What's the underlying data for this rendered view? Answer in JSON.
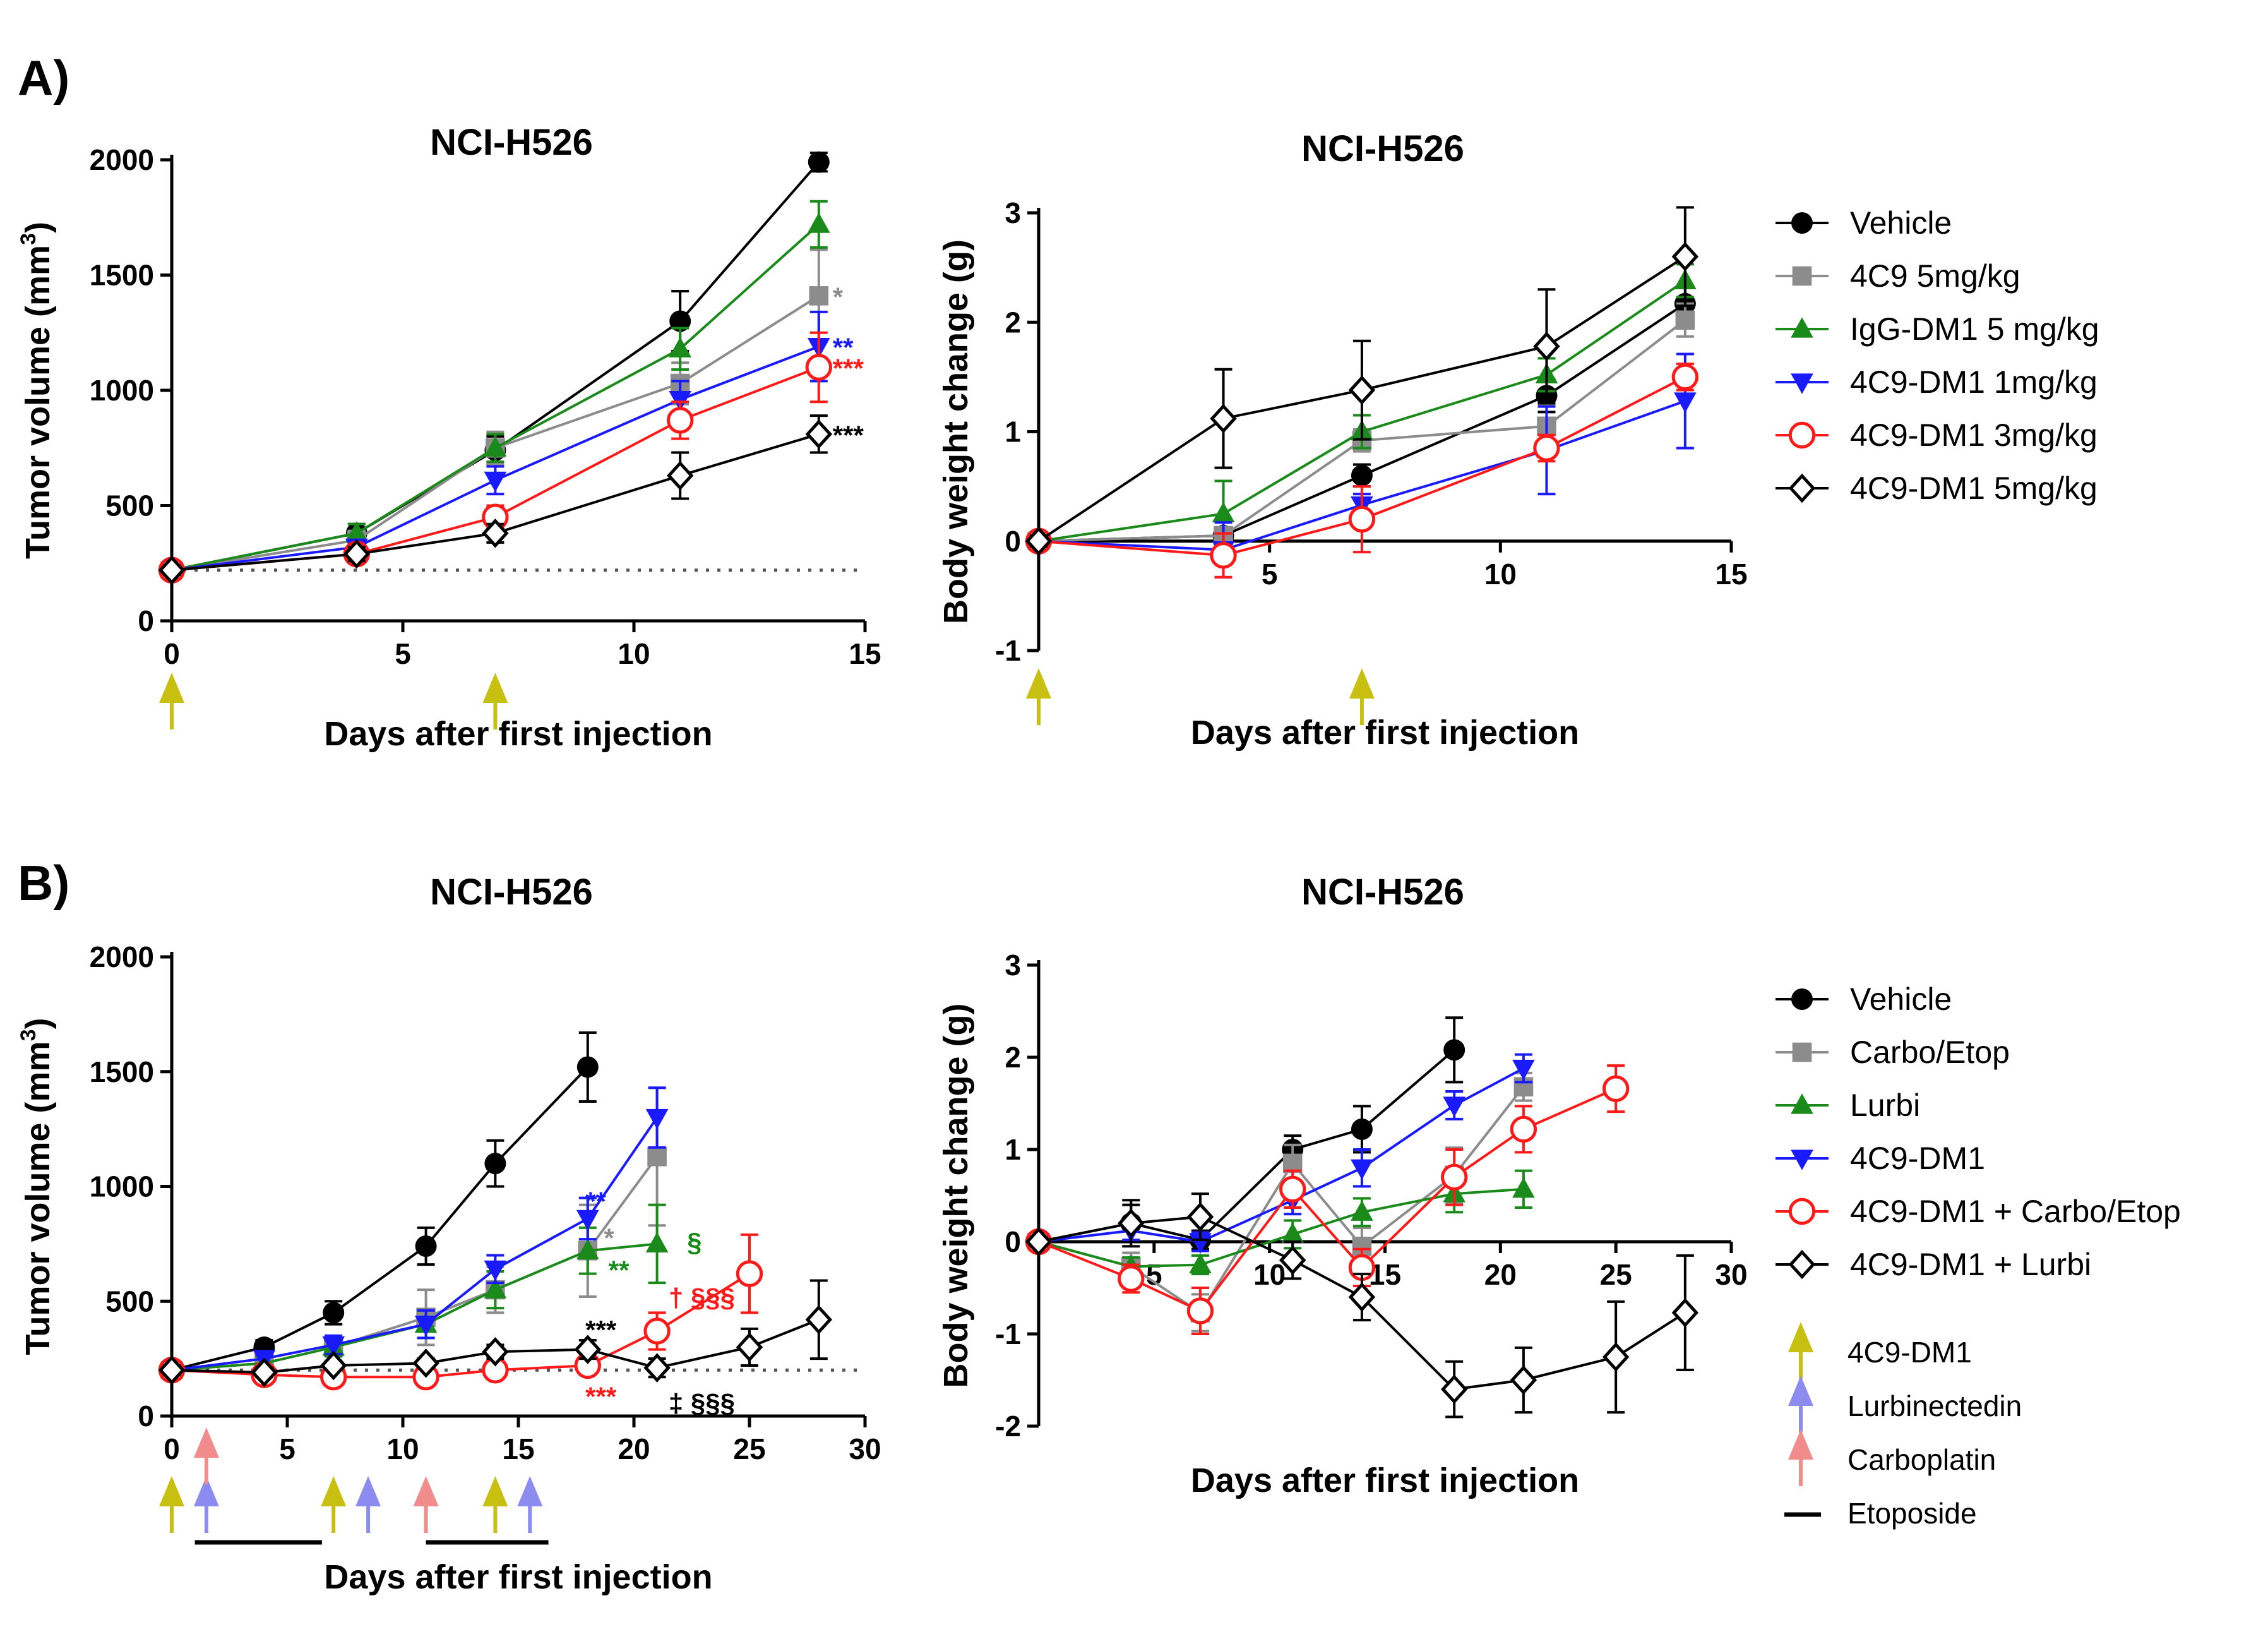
{
  "panel_labels": [
    "A)",
    "B)"
  ],
  "colors": {
    "Vehicle": "#000000",
    "4C9 5mg/kg": "#8c8c8c",
    "IgG-DM1 5 mg/kg": "#1a8a1a",
    "4C9-DM1 1mg/kg": "#1a1aff",
    "4C9-DM1 3mg/kg": "#ff1a1a",
    "4C9-DM1 5mg/kg": "#000000",
    "Carbo/Etop": "#8c8c8c",
    "Lurbi": "#1a8a1a",
    "4C9-DM1": "#1a1aff",
    "4C9-DM1 + Carbo/Etop": "#ff1a1a",
    "4C9-DM1 + Lurbi": "#000000",
    "arrow_4C9": "#c8c010",
    "arrow_lurbi": "#8c8cf0",
    "arrow_carbo": "#f08c8c"
  },
  "legend_A": [
    {
      "label": "Vehicle",
      "marker": "circle-filled"
    },
    {
      "label": "4C9 5mg/kg",
      "marker": "square-filled"
    },
    {
      "label": "IgG-DM1 5 mg/kg",
      "marker": "triangle-up-filled"
    },
    {
      "label": "4C9-DM1 1mg/kg",
      "marker": "triangle-down-filled"
    },
    {
      "label": "4C9-DM1 3mg/kg",
      "marker": "circle-open"
    },
    {
      "label": "4C9-DM1 5mg/kg",
      "marker": "diamond-open"
    }
  ],
  "legend_B": [
    {
      "label": "Vehicle",
      "marker": "circle-filled"
    },
    {
      "label": "Carbo/Etop",
      "marker": "square-filled"
    },
    {
      "label": "Lurbi",
      "marker": "triangle-up-filled"
    },
    {
      "label": "4C9-DM1",
      "marker": "triangle-down-filled"
    },
    {
      "label": "4C9-DM1 + Carbo/Etop",
      "marker": "circle-open"
    },
    {
      "label": "4C9-DM1 + Lurbi",
      "marker": "diamond-open"
    }
  ],
  "treatment_legend": [
    {
      "label": "4C9-DM1",
      "key": "arrow_4C9"
    },
    {
      "label": "Lurbinectedin",
      "key": "arrow_lurbi"
    },
    {
      "label": "Carboplatin",
      "key": "arrow_carbo"
    },
    {
      "label": "Etoposide",
      "key": "bar"
    }
  ],
  "chart_data": [
    {
      "id": "A-tumor",
      "type": "line",
      "title": "NCI-H526",
      "xlabel": "Days after first injection",
      "ylabel_main": "Tumor volume (mm",
      "ylabel_sup": "3",
      "ylabel_close": ")",
      "xlim": [
        0,
        15
      ],
      "ylim": [
        0,
        2000
      ],
      "xticks": [
        0,
        5,
        10,
        15
      ],
      "yticks": [
        0,
        500,
        1000,
        1500,
        2000
      ],
      "baseline": 220,
      "dose_arrows": [
        {
          "day": 0,
          "agent": "arrow_4C9"
        },
        {
          "day": 7,
          "agent": "arrow_4C9"
        }
      ],
      "series": [
        {
          "name": "Vehicle",
          "x": [
            0,
            4,
            7,
            11,
            14
          ],
          "y": [
            220,
            380,
            740,
            1300,
            1990
          ],
          "err": [
            20,
            40,
            60,
            130,
            40
          ]
        },
        {
          "name": "4C9 5mg/kg",
          "x": [
            0,
            4,
            7,
            11,
            14
          ],
          "y": [
            220,
            350,
            750,
            1030,
            1410
          ],
          "err": [
            20,
            40,
            70,
            90,
            200
          ]
        },
        {
          "name": "IgG-DM1 5 mg/kg",
          "x": [
            0,
            4,
            7,
            11,
            14
          ],
          "y": [
            220,
            380,
            750,
            1180,
            1720
          ],
          "err": [
            20,
            40,
            60,
            90,
            100
          ]
        },
        {
          "name": "4C9-DM1 1mg/kg",
          "x": [
            0,
            4,
            7,
            11,
            14
          ],
          "y": [
            220,
            320,
            610,
            960,
            1190
          ],
          "err": [
            20,
            30,
            60,
            80,
            150
          ]
        },
        {
          "name": "4C9-DM1 3mg/kg",
          "x": [
            0,
            4,
            7,
            11,
            14
          ],
          "y": [
            220,
            290,
            450,
            870,
            1100
          ],
          "err": [
            20,
            30,
            50,
            80,
            150
          ]
        },
        {
          "name": "4C9-DM1 5mg/kg",
          "x": [
            0,
            4,
            7,
            11,
            14
          ],
          "y": [
            220,
            290,
            380,
            630,
            810
          ],
          "err": [
            20,
            30,
            40,
            100,
            80
          ]
        }
      ],
      "annotations": [
        {
          "text": "*",
          "x": 14.3,
          "y": 1410,
          "color": "4C9 5mg/kg"
        },
        {
          "text": "**",
          "x": 14.3,
          "y": 1190,
          "color": "4C9-DM1 1mg/kg"
        },
        {
          "text": "***",
          "x": 14.3,
          "y": 1100,
          "color": "4C9-DM1 3mg/kg"
        },
        {
          "text": "***",
          "x": 14.3,
          "y": 810,
          "color": "4C9-DM1 5mg/kg"
        }
      ]
    },
    {
      "id": "A-weight",
      "type": "line",
      "title": "NCI-H526",
      "xlabel": "Days after first injection",
      "ylabel_main": "Body weight change (g)",
      "xlim": [
        0,
        15
      ],
      "ylim": [
        -1,
        3
      ],
      "xticks": [
        5,
        10,
        15
      ],
      "yticks": [
        -1,
        0,
        1,
        2,
        3
      ],
      "dose_arrows": [
        {
          "day": 0,
          "agent": "arrow_4C9"
        },
        {
          "day": 7,
          "agent": "arrow_4C9"
        }
      ],
      "series": [
        {
          "name": "Vehicle",
          "x": [
            0,
            4,
            7,
            11,
            14
          ],
          "y": [
            0,
            0.05,
            0.6,
            1.33,
            2.17
          ],
          "err": [
            0.05,
            0.05,
            0.1,
            0.15,
            0.15
          ]
        },
        {
          "name": "4C9 5mg/kg",
          "x": [
            0,
            4,
            7,
            11,
            14
          ],
          "y": [
            0,
            0.05,
            0.92,
            1.05,
            2.02
          ],
          "err": [
            0.05,
            0.05,
            0.1,
            0.2,
            0.15
          ]
        },
        {
          "name": "IgG-DM1 5 mg/kg",
          "x": [
            0,
            4,
            7,
            11,
            14
          ],
          "y": [
            0,
            0.25,
            1.0,
            1.52,
            2.38
          ],
          "err": [
            0.05,
            0.3,
            0.15,
            0.15,
            0.15
          ]
        },
        {
          "name": "4C9-DM1 1mg/kg",
          "x": [
            0,
            4,
            7,
            11,
            14
          ],
          "y": [
            0,
            -0.08,
            0.33,
            0.83,
            1.28
          ],
          "err": [
            0.05,
            0.25,
            0.1,
            0.4,
            0.43
          ]
        },
        {
          "name": "4C9-DM1 3mg/kg",
          "x": [
            0,
            4,
            7,
            11,
            14
          ],
          "y": [
            0,
            -0.13,
            0.2,
            0.85,
            1.5
          ],
          "err": [
            0.05,
            0.2,
            0.3,
            0.12,
            0.12
          ]
        },
        {
          "name": "4C9-DM1 5mg/kg",
          "x": [
            0,
            4,
            7,
            11,
            14
          ],
          "y": [
            0,
            1.12,
            1.38,
            1.78,
            2.6
          ],
          "err": [
            0.05,
            0.45,
            0.45,
            0.52,
            0.45
          ]
        }
      ]
    },
    {
      "id": "B-tumor",
      "type": "line",
      "title": "NCI-H526",
      "xlabel": "Days after first injection",
      "ylabel_main": "Tumor volume (mm",
      "ylabel_sup": "3",
      "ylabel_close": ")",
      "xlim": [
        0,
        30
      ],
      "ylim": [
        0,
        2000
      ],
      "xticks": [
        0,
        5,
        10,
        15,
        20,
        25,
        30
      ],
      "yticks": [
        0,
        500,
        1000,
        1500,
        2000
      ],
      "baseline": 200,
      "dose_arrows": [
        {
          "day": 0,
          "agent": "arrow_4C9"
        },
        {
          "day": 1.5,
          "agent": "arrow_lurbi"
        },
        {
          "day": 1.5,
          "agent": "arrow_carbo"
        },
        {
          "day": 7,
          "agent": "arrow_4C9"
        },
        {
          "day": 8.5,
          "agent": "arrow_lurbi"
        },
        {
          "day": 11,
          "agent": "arrow_carbo"
        },
        {
          "day": 14,
          "agent": "arrow_4C9"
        },
        {
          "day": 15.5,
          "agent": "arrow_lurbi"
        }
      ],
      "etoposide_bars": [
        [
          1,
          6.5
        ],
        [
          11,
          16.3
        ]
      ],
      "series": [
        {
          "name": "Vehicle",
          "x": [
            0,
            4,
            7,
            11,
            14,
            18
          ],
          "y": [
            200,
            300,
            450,
            740,
            1100,
            1520
          ],
          "err": [
            20,
            30,
            50,
            80,
            100,
            150
          ]
        },
        {
          "name": "Carbo/Etop",
          "x": [
            0,
            4,
            7,
            11,
            14,
            18,
            21
          ],
          "y": [
            200,
            230,
            300,
            430,
            550,
            720,
            1130
          ],
          "err": [
            20,
            30,
            40,
            120,
            100,
            200,
            300
          ]
        },
        {
          "name": "Lurbi",
          "x": [
            0,
            4,
            7,
            11,
            14,
            18,
            21
          ],
          "y": [
            200,
            230,
            300,
            400,
            550,
            720,
            750
          ],
          "err": [
            20,
            30,
            40,
            60,
            80,
            100,
            170
          ]
        },
        {
          "name": "4C9-DM1",
          "x": [
            0,
            4,
            7,
            11,
            14,
            18,
            21
          ],
          "y": [
            200,
            250,
            310,
            400,
            640,
            860,
            1300
          ],
          "err": [
            20,
            30,
            40,
            60,
            60,
            90,
            130
          ]
        },
        {
          "name": "4C9-DM1 + Carbo/Etop",
          "x": [
            0,
            4,
            7,
            11,
            14,
            18,
            21,
            25
          ],
          "y": [
            200,
            180,
            170,
            170,
            200,
            220,
            370,
            620
          ],
          "err": [
            20,
            20,
            20,
            20,
            30,
            30,
            80,
            170
          ]
        },
        {
          "name": "4C9-DM1 + Lurbi",
          "x": [
            0,
            4,
            7,
            11,
            14,
            18,
            21,
            25,
            28
          ],
          "y": [
            200,
            190,
            220,
            230,
            280,
            290,
            210,
            300,
            420
          ],
          "err": [
            20,
            20,
            20,
            20,
            30,
            40,
            40,
            80,
            170
          ]
        }
      ],
      "annotations": [
        {
          "text": "**",
          "x": 17.9,
          "y": 940,
          "color": "4C9-DM1"
        },
        {
          "text": "*",
          "x": 18.7,
          "y": 780,
          "color": "Carbo/Etop"
        },
        {
          "text": "**",
          "x": 18.9,
          "y": 640,
          "color": "Lurbi"
        },
        {
          "text": "§",
          "x": 22.3,
          "y": 760,
          "color": "Lurbi"
        },
        {
          "text": "***",
          "x": 17.9,
          "y": 380,
          "color": "4C9-DM1 + Lurbi"
        },
        {
          "text": "***",
          "x": 17.9,
          "y": 90,
          "color": "4C9-DM1 + Carbo/Etop"
        },
        {
          "text": "† §§§",
          "x": 21.5,
          "y": 520,
          "color": "4C9-DM1 + Carbo/Etop"
        },
        {
          "text": "‡ §§§",
          "x": 21.5,
          "y": 60,
          "color": "4C9-DM1 + Lurbi"
        }
      ]
    },
    {
      "id": "B-weight",
      "type": "line",
      "title": "NCI-H526",
      "xlabel": "Days after first injection",
      "ylabel_main": "Body weight change (g)",
      "xlim": [
        0,
        30
      ],
      "ylim": [
        -2,
        3
      ],
      "xticks": [
        5,
        10,
        15,
        20,
        25,
        30
      ],
      "yticks": [
        -2,
        -1,
        0,
        1,
        2,
        3
      ],
      "series": [
        {
          "name": "Vehicle",
          "x": [
            0,
            4,
            7,
            11,
            14,
            18
          ],
          "y": [
            0,
            0.2,
            0.02,
            1.0,
            1.22,
            2.08
          ],
          "err": [
            0.05,
            0.2,
            0.1,
            0.15,
            0.25,
            0.35
          ]
        },
        {
          "name": "Carbo/Etop",
          "x": [
            0,
            4,
            7,
            11,
            14,
            18,
            21
          ],
          "y": [
            0,
            -0.27,
            -0.77,
            0.85,
            -0.05,
            0.72,
            1.68
          ],
          "err": [
            0.05,
            0.15,
            0.2,
            0.2,
            0.2,
            0.3,
            0.15
          ]
        },
        {
          "name": "Lurbi",
          "x": [
            0,
            4,
            7,
            11,
            14,
            18,
            21
          ],
          "y": [
            0,
            -0.27,
            -0.25,
            0.08,
            0.32,
            0.52,
            0.57
          ],
          "err": [
            0.05,
            0.1,
            0.1,
            0.15,
            0.15,
            0.2,
            0.2
          ]
        },
        {
          "name": "4C9-DM1",
          "x": [
            0,
            4,
            7,
            11,
            14,
            18,
            21
          ],
          "y": [
            0,
            0.12,
            0.0,
            0.45,
            0.8,
            1.48,
            1.88
          ],
          "err": [
            0.05,
            0.1,
            0.1,
            0.15,
            0.2,
            0.15,
            0.15
          ]
        },
        {
          "name": "4C9-DM1 + Carbo/Etop",
          "x": [
            0,
            4,
            7,
            11,
            14,
            18,
            21,
            25
          ],
          "y": [
            0,
            -0.4,
            -0.75,
            0.57,
            -0.28,
            0.7,
            1.22,
            1.66
          ],
          "err": [
            0.05,
            0.15,
            0.25,
            0.2,
            0.2,
            0.3,
            0.25,
            0.25
          ]
        },
        {
          "name": "4C9-DM1 + Lurbi",
          "x": [
            0,
            4,
            7,
            11,
            14,
            18,
            21,
            25,
            28
          ],
          "y": [
            0,
            0.2,
            0.27,
            -0.2,
            -0.6,
            -1.6,
            -1.5,
            -1.25,
            -0.77
          ],
          "err": [
            0.05,
            0.25,
            0.25,
            0.2,
            0.25,
            0.3,
            0.35,
            0.6,
            0.62
          ]
        }
      ]
    }
  ]
}
